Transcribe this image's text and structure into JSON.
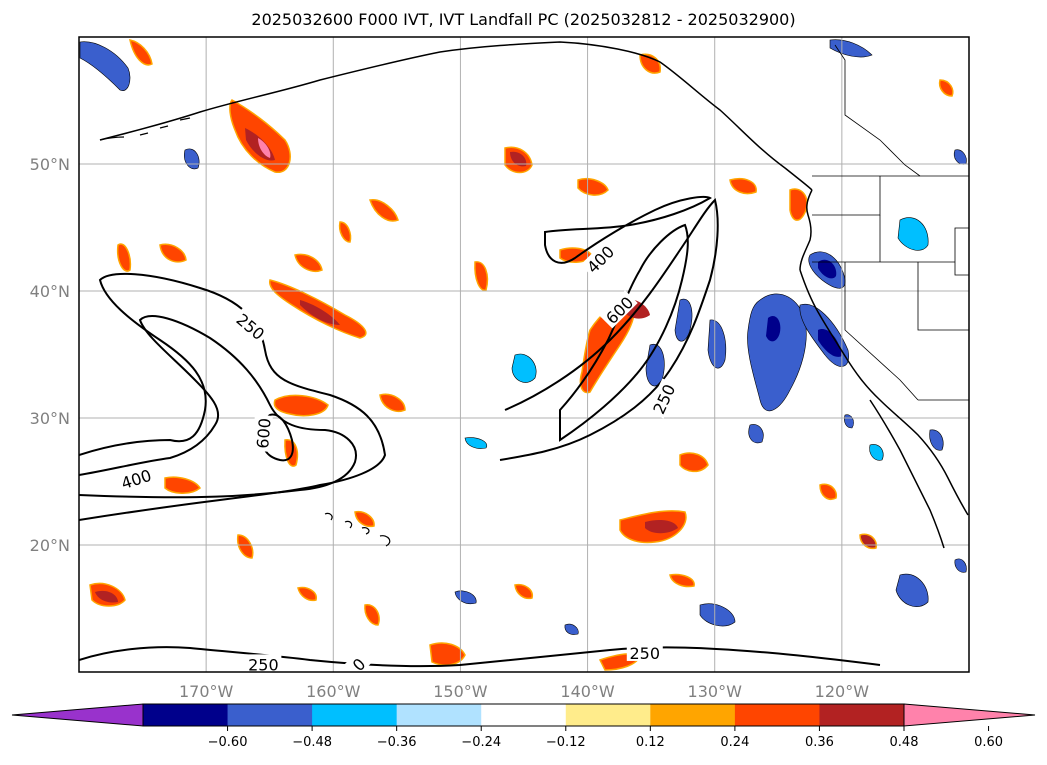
{
  "title": "2025032600 F000 IVT, IVT Landfall PC (2025032812 - 2025032900)",
  "map": {
    "lon_range": [
      -180,
      -110
    ],
    "lat_range": [
      10,
      60
    ],
    "lon_ticks": [
      "170°W",
      "160°W",
      "150°W",
      "140°W",
      "130°W",
      "120°W"
    ],
    "lat_ticks": [
      "50°N",
      "40°N",
      "30°N",
      "20°N"
    ],
    "gridlines": true
  },
  "ivt_contours": {
    "levels": [
      250,
      400,
      600
    ],
    "labels": [
      {
        "text": "250",
        "lon": -166.5,
        "lat": 37.2,
        "rotate": 40
      },
      {
        "text": "400",
        "lon": -175.5,
        "lat": 25.2,
        "rotate": -18
      },
      {
        "text": "600",
        "lon": -165.5,
        "lat": 28.8,
        "rotate": -85
      },
      {
        "text": "400",
        "lon": -139.0,
        "lat": 42.5,
        "rotate": -45
      },
      {
        "text": "600",
        "lon": -137.5,
        "lat": 38.5,
        "rotate": -45
      },
      {
        "text": "250",
        "lon": -134.0,
        "lat": 31.5,
        "rotate": -65
      },
      {
        "text": "250",
        "lon": -165.5,
        "lat": 10.6,
        "rotate": 0
      },
      {
        "text": "0",
        "lon": -158.0,
        "lat": 10.6,
        "rotate": -45
      },
      {
        "text": "250",
        "lon": -135.5,
        "lat": 11.5,
        "rotate": 0
      }
    ]
  },
  "colorbar": {
    "colors": [
      "#9932cc",
      "#00008b",
      "#3a5fcd",
      "#00bfff",
      "#b0e2ff",
      "#ffffff",
      "#ffec8b",
      "#ffa500",
      "#ff4500",
      "#b22222",
      "#ff82ab"
    ],
    "ticks": [
      "−0.60",
      "−0.48",
      "−0.36",
      "−0.24",
      "−0.12",
      "0.12",
      "0.24",
      "0.36",
      "0.48",
      "0.60"
    ],
    "extend": "both"
  }
}
